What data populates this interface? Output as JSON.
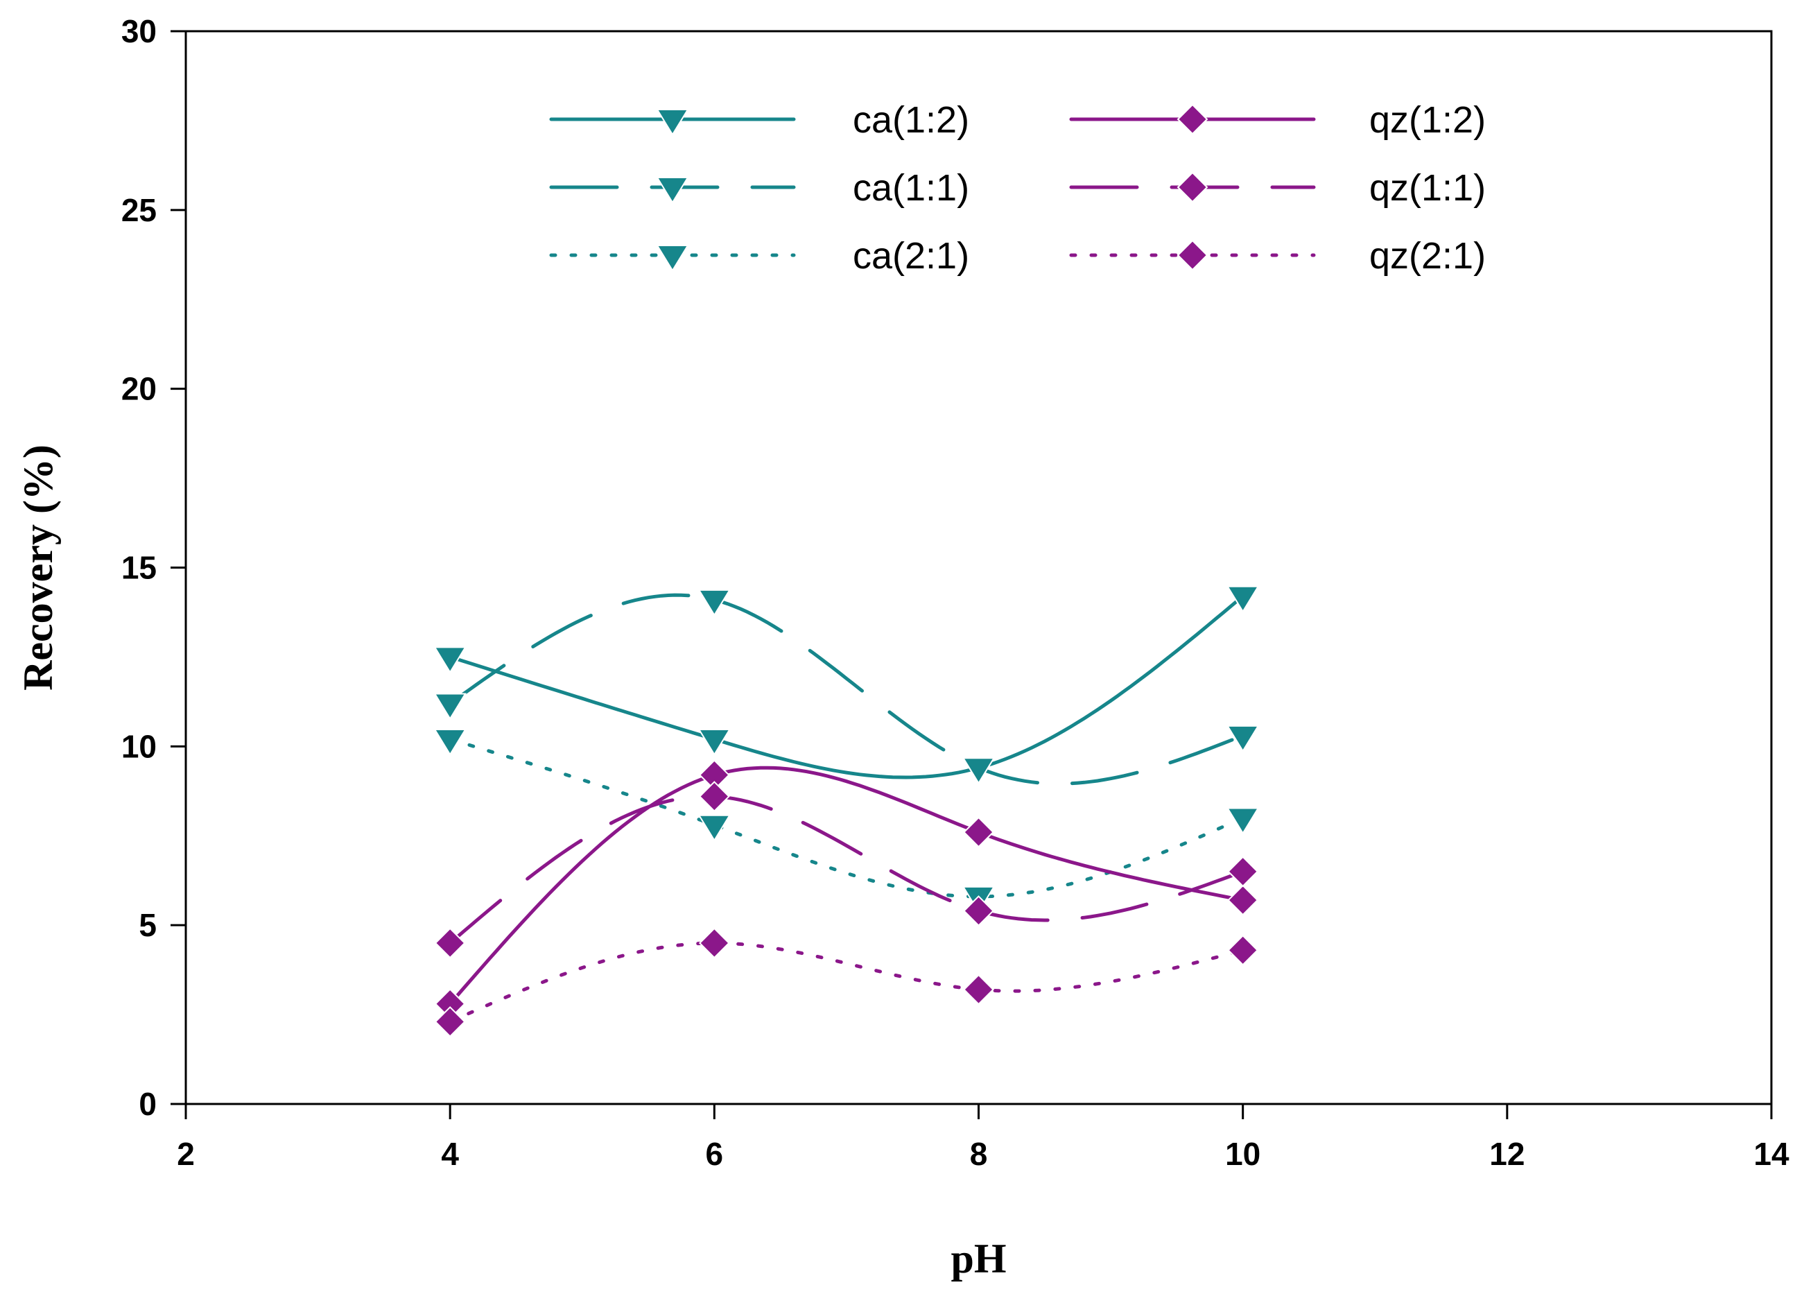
{
  "chart_data": {
    "type": "line",
    "title": "",
    "xlabel": "pH",
    "ylabel": "Recovery (%)",
    "xlim": [
      2,
      14
    ],
    "ylim": [
      0,
      30
    ],
    "xticks": [
      2,
      4,
      6,
      8,
      10,
      12,
      14
    ],
    "yticks": [
      0,
      5,
      10,
      15,
      20,
      25,
      30
    ],
    "x": [
      4,
      6,
      8,
      10
    ],
    "legend_position": "top-center",
    "grid": false,
    "series": [
      {
        "name": "ca(1:2)",
        "values": [
          12.5,
          10.2,
          9.4,
          14.2
        ],
        "color": "#16868b",
        "dash": "solid",
        "marker": "triangle-down"
      },
      {
        "name": "ca(1:1)",
        "values": [
          11.2,
          14.1,
          9.4,
          10.3
        ],
        "color": "#16868b",
        "dash": "dash",
        "marker": "triangle-down"
      },
      {
        "name": "ca(2:1)",
        "values": [
          10.2,
          7.8,
          5.8,
          8.0
        ],
        "color": "#16868b",
        "dash": "dot",
        "marker": "triangle-down"
      },
      {
        "name": "qz(1:2)",
        "values": [
          2.8,
          9.2,
          7.6,
          5.7
        ],
        "color": "#8b178a",
        "dash": "solid",
        "marker": "diamond"
      },
      {
        "name": "qz(1:1)",
        "values": [
          4.5,
          8.6,
          5.4,
          6.5
        ],
        "color": "#8b178a",
        "dash": "dash",
        "marker": "diamond"
      },
      {
        "name": "qz(2:1)",
        "values": [
          2.3,
          4.5,
          3.2,
          4.3
        ],
        "color": "#8b178a",
        "dash": "dot",
        "marker": "diamond"
      }
    ]
  }
}
